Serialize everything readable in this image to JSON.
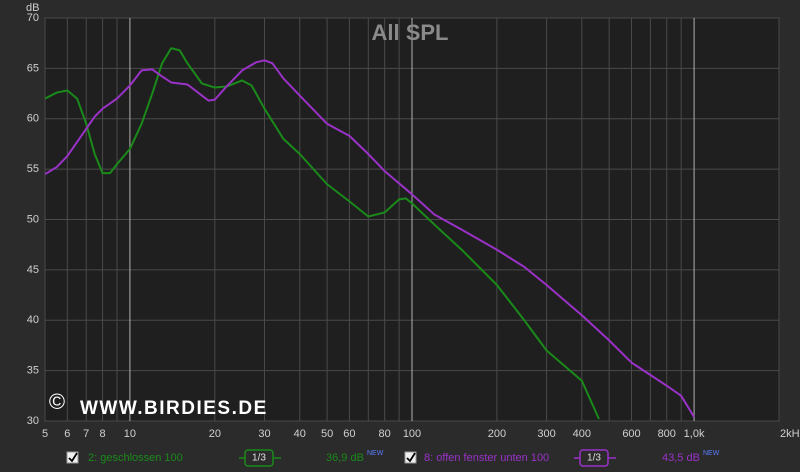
{
  "chart_data": {
    "type": "line",
    "title": "All SPL",
    "y_label": "dB",
    "watermark_symbol": "©",
    "watermark": "WWW.BIRDIES.DE",
    "log_x": true,
    "grid": true,
    "xlim": [
      5,
      2000
    ],
    "ylim": [
      30,
      70
    ],
    "xticks": [
      5,
      6,
      7,
      8,
      10,
      20,
      30,
      40,
      50,
      60,
      80,
      100,
      200,
      300,
      400,
      600,
      800,
      {
        "value": 1000,
        "label": "1,0k"
      },
      {
        "value": 2000,
        "label": "2kHz"
      }
    ],
    "xgrid_minor": [
      9,
      70,
      90,
      500,
      700,
      900
    ],
    "yticks": [
      30,
      35,
      40,
      45,
      50,
      55,
      60,
      65,
      70
    ],
    "series": [
      {
        "name": "2: geschlossen 100",
        "color": "#1a8a1a",
        "visible": true,
        "smoothing": "1/3",
        "level": "36,9 dB",
        "badge": "NEW",
        "x": [
          5,
          5.5,
          6,
          6.5,
          7,
          7.5,
          8,
          8.5,
          9,
          10,
          11,
          12,
          13,
          14,
          15,
          16,
          18,
          20,
          22,
          25,
          27,
          30,
          35,
          40,
          50,
          60,
          70,
          80,
          90,
          95,
          100,
          120,
          150,
          200,
          250,
          300,
          400,
          460
        ],
        "values": [
          62.0,
          62.6,
          62.8,
          62.0,
          59.5,
          56.5,
          54.6,
          54.6,
          55.5,
          57.0,
          59.5,
          62.5,
          65.5,
          67.0,
          66.8,
          65.5,
          63.5,
          63.1,
          63.2,
          63.8,
          63.3,
          61.0,
          58.0,
          56.5,
          53.5,
          51.8,
          50.3,
          50.7,
          52.0,
          52.1,
          51.6,
          49.5,
          47.0,
          43.5,
          40.0,
          37.0,
          34.0,
          30.2
        ]
      },
      {
        "name": "8: offen fenster unten 100",
        "color": "#9a32c8",
        "visible": true,
        "smoothing": "1/3",
        "level": "43,5 dB",
        "badge": "NEW",
        "x": [
          5,
          5.5,
          6,
          7,
          7.5,
          8,
          9,
          10,
          11,
          12,
          13,
          14,
          16,
          18,
          19,
          20,
          22,
          25,
          28,
          30,
          32,
          35,
          40,
          50,
          60,
          70,
          80,
          100,
          120,
          150,
          200,
          250,
          300,
          400,
          500,
          600,
          800,
          900,
          1000
        ],
        "values": [
          54.5,
          55.2,
          56.3,
          59.0,
          60.2,
          61.0,
          62.0,
          63.3,
          64.8,
          64.9,
          64.2,
          63.6,
          63.4,
          62.3,
          61.8,
          61.9,
          63.2,
          64.8,
          65.6,
          65.8,
          65.5,
          64.0,
          62.3,
          59.5,
          58.3,
          56.5,
          54.8,
          52.5,
          50.5,
          49.0,
          47.0,
          45.3,
          43.5,
          40.5,
          38.0,
          35.8,
          33.5,
          32.5,
          30.4
        ]
      }
    ]
  }
}
